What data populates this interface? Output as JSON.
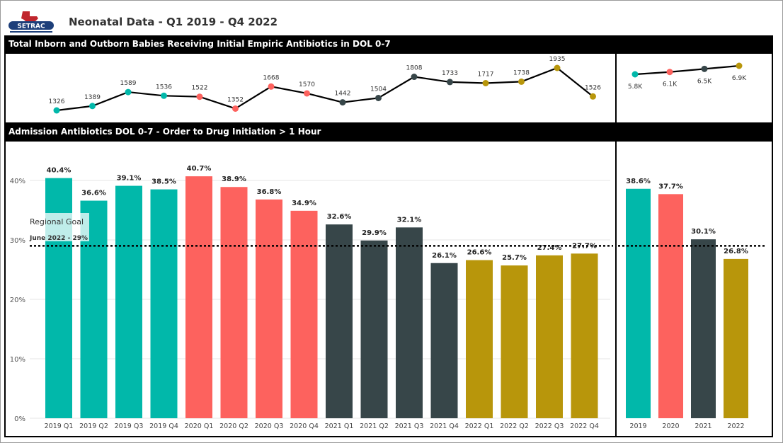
{
  "header": {
    "title": "Neonatal Data - Q1 2019 - Q4 2022",
    "logo_text": "SETRAC"
  },
  "colors": {
    "2019": "#01b8aa",
    "2020": "#fd625e",
    "2021": "#374649",
    "2022": "#b8960b"
  },
  "top_panel": {
    "title": "Total Inborn and Outborn Babies Receiving Initial Empiric Antibiotics in DOL 0-7"
  },
  "bottom_panel": {
    "title": "Admission Antibiotics DOL 0-7 - Order to Drug Initiation > 1 Hour",
    "goal_label": "Regional Goal",
    "goal_sublabel": "June 2022 - 29%"
  },
  "chart_data": [
    {
      "type": "line",
      "categories": [
        "2019 Q1",
        "2019 Q2",
        "2019 Q3",
        "2019 Q4",
        "2020 Q1",
        "2020 Q2",
        "2020 Q3",
        "2020 Q4",
        "2021 Q1",
        "2021 Q2",
        "2021 Q3",
        "2021 Q4",
        "2022 Q1",
        "2022 Q2",
        "2022 Q3",
        "2022 Q4"
      ],
      "values": [
        1326,
        1389,
        1589,
        1536,
        1522,
        1352,
        1668,
        1570,
        1442,
        1504,
        1808,
        1733,
        1717,
        1738,
        1935,
        1526
      ],
      "labels": [
        "1326",
        "1389",
        "1589",
        "1536",
        "1522",
        "1352",
        "1668",
        "1570",
        "1442",
        "1504",
        "1808",
        "1733",
        "1717",
        "1738",
        "1935",
        "1526"
      ],
      "years": [
        "2019",
        "2019",
        "2019",
        "2019",
        "2020",
        "2020",
        "2020",
        "2020",
        "2021",
        "2021",
        "2021",
        "2021",
        "2022",
        "2022",
        "2022",
        "2022"
      ]
    },
    {
      "type": "line",
      "categories": [
        "2019",
        "2020",
        "2021",
        "2022"
      ],
      "values": [
        5800,
        6100,
        6500,
        6900
      ],
      "labels": [
        "5.8K",
        "6.1K",
        "6.5K",
        "6.9K"
      ],
      "years": [
        "2019",
        "2020",
        "2021",
        "2022"
      ]
    },
    {
      "type": "bar",
      "categories": [
        "2019 Q1",
        "2019 Q2",
        "2019 Q3",
        "2019 Q4",
        "2020 Q1",
        "2020 Q2",
        "2020 Q3",
        "2020 Q4",
        "2021 Q1",
        "2021 Q2",
        "2021 Q3",
        "2021 Q4",
        "2022 Q1",
        "2022 Q2",
        "2022 Q3",
        "2022 Q4"
      ],
      "values": [
        40.4,
        36.6,
        39.1,
        38.5,
        40.7,
        38.9,
        36.8,
        34.9,
        32.6,
        29.9,
        32.1,
        26.1,
        26.6,
        25.7,
        27.4,
        27.7
      ],
      "labels": [
        "40.4%",
        "36.6%",
        "39.1%",
        "38.5%",
        "40.7%",
        "38.9%",
        "36.8%",
        "34.9%",
        "32.6%",
        "29.9%",
        "32.1%",
        "26.1%",
        "26.6%",
        "25.7%",
        "27.4%",
        "27.7%"
      ],
      "years": [
        "2019",
        "2019",
        "2019",
        "2019",
        "2020",
        "2020",
        "2020",
        "2020",
        "2021",
        "2021",
        "2021",
        "2021",
        "2022",
        "2022",
        "2022",
        "2022"
      ],
      "yticks": [
        "0%",
        "10%",
        "20%",
        "30%",
        "40%"
      ],
      "ylim": [
        0,
        45
      ],
      "goal": 29
    },
    {
      "type": "bar",
      "categories": [
        "2019",
        "2020",
        "2021",
        "2022"
      ],
      "values": [
        38.6,
        37.7,
        30.1,
        26.8
      ],
      "labels": [
        "38.6%",
        "37.7%",
        "30.1%",
        "26.8%"
      ],
      "years": [
        "2019",
        "2020",
        "2021",
        "2022"
      ],
      "ylim": [
        0,
        45
      ],
      "goal": 29
    }
  ]
}
